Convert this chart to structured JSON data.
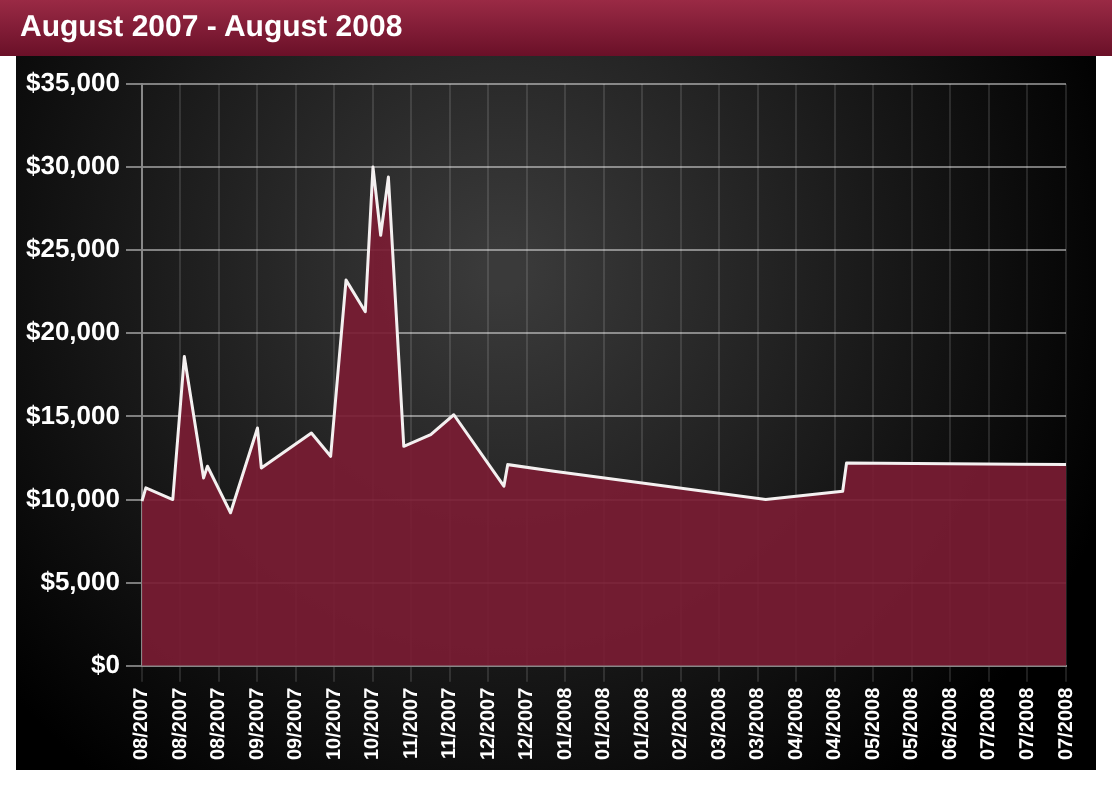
{
  "chart_data": {
    "type": "area",
    "title": "August 2007 - August 2008",
    "categories": [
      "08/2007",
      null,
      null,
      null,
      null,
      null,
      null,
      null,
      null,
      null,
      "08/2007",
      null,
      null,
      null,
      null,
      null,
      null,
      null,
      null,
      null,
      "08/2007",
      null,
      null,
      null,
      null,
      null,
      null,
      null,
      null,
      null,
      "09/2007",
      null,
      null,
      null,
      null,
      null,
      null,
      null,
      null,
      null,
      "09/2007",
      null,
      null,
      null,
      null,
      null,
      null,
      null,
      null,
      null,
      "10/2007",
      null,
      null,
      null,
      null,
      null,
      null,
      null,
      null,
      null,
      "10/2007",
      null,
      null,
      null,
      null,
      null,
      null,
      null,
      null,
      null,
      "11/2007",
      null,
      null,
      null,
      null,
      null,
      null,
      null,
      null,
      null,
      "11/2007",
      null,
      null,
      null,
      null,
      null,
      null,
      null,
      null,
      null,
      "12/2007",
      null,
      null,
      null,
      null,
      null,
      null,
      null,
      null,
      null,
      "12/2007",
      null,
      null,
      null,
      null,
      null,
      null,
      null,
      null,
      null,
      "01/2008",
      null,
      null,
      null,
      null,
      null,
      null,
      null,
      null,
      null,
      "01/2008",
      null,
      null,
      null,
      null,
      null,
      null,
      null,
      null,
      null,
      "01/2008",
      null,
      null,
      null,
      null,
      null,
      null,
      null,
      null,
      null,
      "02/2008",
      null,
      null,
      null,
      null,
      null,
      null,
      null,
      null,
      null,
      "03/2008",
      null,
      null,
      null,
      null,
      null,
      null,
      null,
      null,
      null,
      "03/2008",
      null,
      null,
      null,
      null,
      null,
      null,
      null,
      null,
      null,
      "04/2008",
      null,
      null,
      null,
      null,
      null,
      null,
      null,
      null,
      null,
      "04/2008",
      null,
      null,
      null,
      null,
      null,
      null,
      null,
      null,
      null,
      "05/2008",
      null,
      null,
      null,
      null,
      null,
      null,
      null,
      null,
      null,
      "05/2008",
      null,
      null,
      null,
      null,
      null,
      null,
      null,
      null,
      null,
      "06/2008",
      null,
      null,
      null,
      null,
      null,
      null,
      null,
      null,
      null,
      "07/2008",
      null,
      null,
      null,
      null,
      null,
      null,
      null,
      null,
      null,
      "07/2008",
      null,
      null,
      null,
      null,
      null,
      null,
      null,
      null,
      null,
      "07/2008"
    ],
    "series": [
      {
        "color": "#7a1c33",
        "values": [
          9900,
          10700,
          null,
          null,
          null,
          null,
          null,
          null,
          10000,
          null,
          null,
          18600,
          null,
          null,
          null,
          null,
          11300,
          12000,
          null,
          null,
          null,
          null,
          null,
          9200,
          null,
          null,
          null,
          null,
          null,
          null,
          14300,
          11900,
          null,
          null,
          null,
          null,
          null,
          null,
          null,
          null,
          null,
          null,
          null,
          null,
          14000,
          null,
          null,
          null,
          null,
          12600,
          null,
          null,
          null,
          23200,
          null,
          null,
          null,
          null,
          21300,
          null,
          30000,
          null,
          25900,
          null,
          29400,
          null,
          null,
          null,
          13200,
          null,
          null,
          null,
          null,
          null,
          null,
          13900,
          null,
          null,
          null,
          null,
          null,
          15100,
          null,
          null,
          null,
          null,
          null,
          null,
          null,
          null,
          null,
          null,
          null,
          null,
          10800,
          12100,
          null,
          null,
          null,
          null,
          null,
          null,
          null,
          null,
          null,
          null,
          null,
          11700,
          null,
          null,
          null,
          null,
          null,
          null,
          null,
          null,
          null,
          null,
          null,
          null,
          null,
          null,
          null,
          null,
          null,
          null,
          null,
          null,
          null,
          null,
          null,
          null,
          null,
          null,
          null,
          null,
          null,
          null,
          null,
          null,
          null,
          null,
          null,
          null,
          null,
          null,
          null,
          null,
          null,
          null,
          null,
          null,
          null,
          null,
          null,
          null,
          null,
          null,
          null,
          null,
          null,
          null,
          10000,
          null,
          null,
          null,
          null,
          null,
          null,
          null,
          null,
          null,
          null,
          null,
          null,
          null,
          null,
          null,
          null,
          null,
          null,
          null,
          10500,
          12200,
          null,
          null,
          null,
          null,
          null,
          null,
          null,
          null,
          null,
          null,
          null,
          null,
          null,
          null,
          null,
          null,
          null,
          null,
          null,
          null,
          null,
          null,
          null,
          null,
          null,
          null,
          null,
          null,
          null,
          null,
          null,
          null,
          null,
          null,
          null,
          null,
          null,
          null,
          null,
          null,
          null,
          null,
          null,
          null,
          null,
          null,
          null,
          null,
          null,
          null,
          null,
          null,
          null,
          null,
          null,
          null,
          12100
        ]
      }
    ],
    "ylim": [
      0,
      35000
    ],
    "yticks": [
      {
        "value": 0,
        "label": "$0"
      },
      {
        "value": 5000,
        "label": "$5,000"
      },
      {
        "value": 10000,
        "label": "$10,000"
      },
      {
        "value": 15000,
        "label": "$15,000"
      },
      {
        "value": 20000,
        "label": "$20,000"
      },
      {
        "value": 25000,
        "label": "$25,000"
      },
      {
        "value": 30000,
        "label": "$30,000"
      },
      {
        "value": 35000,
        "label": "$35,000"
      }
    ],
    "grid": true,
    "legend": false,
    "marker": "none",
    "line_style": "solid"
  }
}
